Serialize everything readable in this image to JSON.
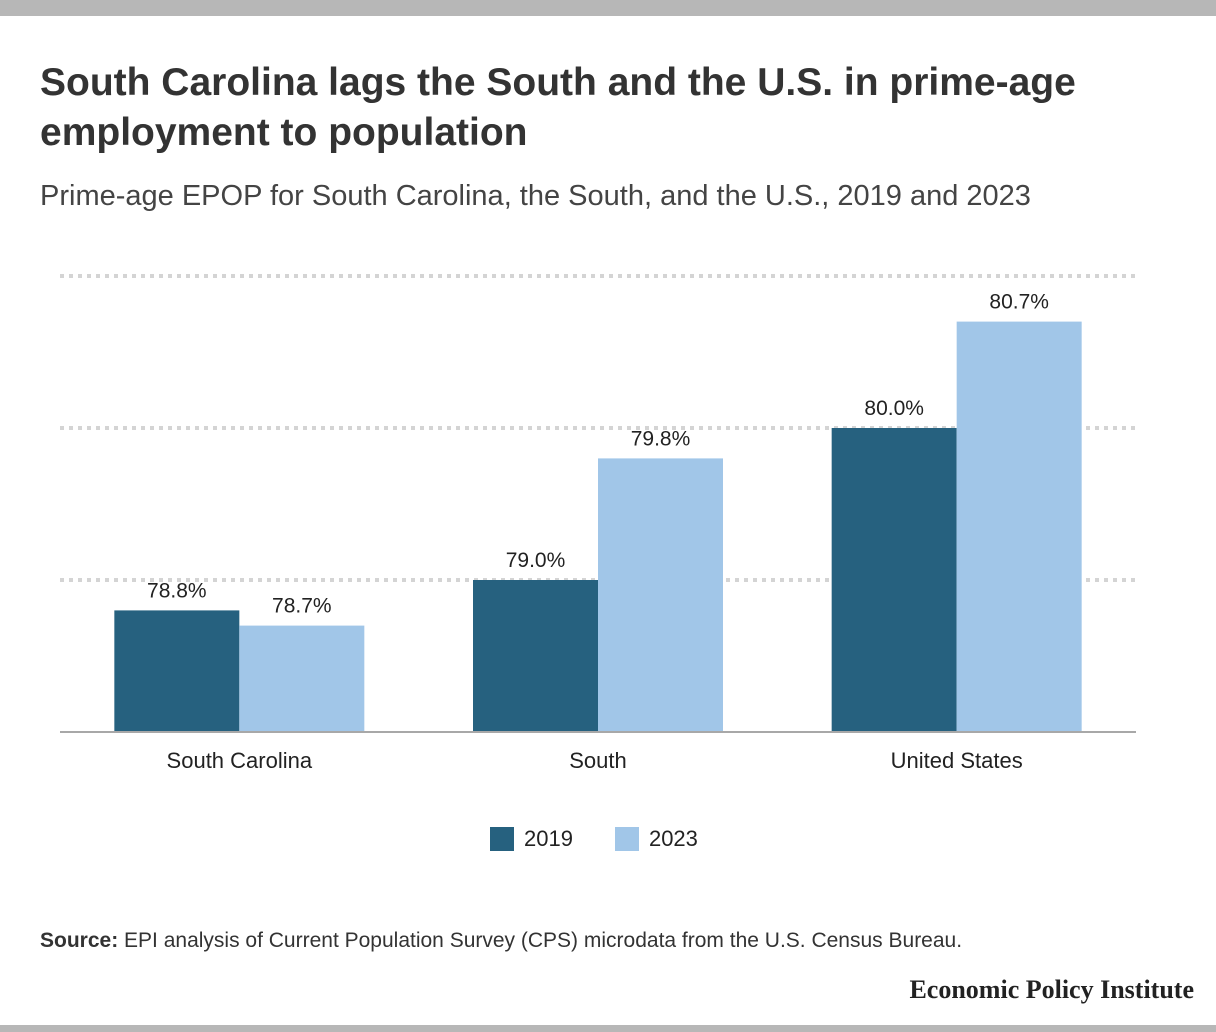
{
  "header": {
    "title": "South Carolina lags the South and the U.S. in prime-age employment to population",
    "subtitle": "Prime-age EPOP for South Carolina, the South, and the U.S., 2019 and 2023"
  },
  "chart_data": {
    "type": "bar",
    "categories": [
      "South Carolina",
      "South",
      "United States"
    ],
    "series": [
      {
        "name": "2019",
        "values": [
          78.8,
          79.0,
          80.0
        ],
        "labels": [
          "78.8%",
          "79.0%",
          "80.0%"
        ],
        "color": "#26617f"
      },
      {
        "name": "2023",
        "values": [
          78.7,
          79.8,
          80.7
        ],
        "labels": [
          "78.7%",
          "79.8%",
          "80.7%"
        ],
        "color": "#a1c6e8"
      }
    ],
    "ylim": [
      78.0,
      81.0
    ],
    "grid": true,
    "legend": "bottom-center"
  },
  "footer": {
    "source_label": "Source:",
    "source_text": " EPI analysis of Current Population Survey (CPS) microdata from the U.S. Census Bureau.",
    "brand": "Economic Policy Institute"
  }
}
